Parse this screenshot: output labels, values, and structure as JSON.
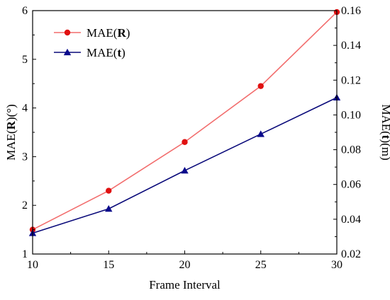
{
  "chart_data": {
    "type": "line",
    "x": [
      10,
      15,
      20,
      25,
      30
    ],
    "xlabel": "Frame Interval",
    "xlim": [
      10,
      30
    ],
    "xticks": [
      "10",
      "15",
      "20",
      "25",
      "30"
    ],
    "ylabel_left": {
      "prefix": "MAE(",
      "bold": "R",
      "suffix": ")(°)"
    },
    "ylim_left": [
      1,
      6
    ],
    "yticks_left": [
      "1",
      "2",
      "3",
      "4",
      "5",
      "6"
    ],
    "ylabel_right": {
      "prefix": "MAE(",
      "bold": "t",
      "suffix": ")(m)"
    },
    "ylim_right": [
      0.02,
      0.16
    ],
    "yticks_right": [
      "0.02",
      "0.04",
      "0.06",
      "0.08",
      "0.10",
      "0.12",
      "0.14",
      "0.16"
    ],
    "grid": false,
    "legend_position": "top-left",
    "series": [
      {
        "legend": {
          "prefix": "MAE(",
          "bold": "R",
          "suffix": ")"
        },
        "axis": "left",
        "values": [
          1.5,
          2.3,
          3.3,
          4.45,
          5.97
        ],
        "line_color": "#f26d6d",
        "marker": "circle",
        "marker_color": "#e01010"
      },
      {
        "legend": {
          "prefix": "MAE(",
          "bold": "t",
          "suffix": ")"
        },
        "axis": "right",
        "values": [
          0.032,
          0.046,
          0.068,
          0.089,
          0.11
        ],
        "line_color": "#0a0a7a",
        "marker": "triangle",
        "marker_color": "#0a0a8c"
      }
    ]
  }
}
